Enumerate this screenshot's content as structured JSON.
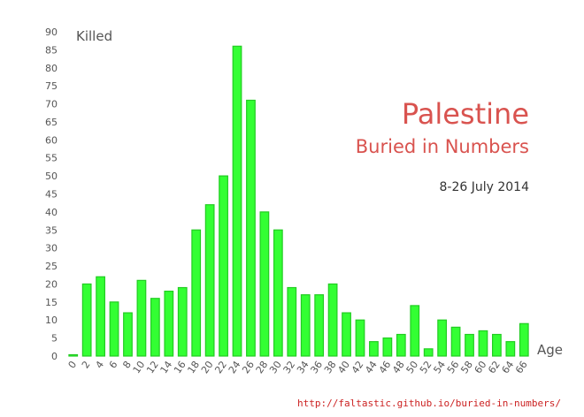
{
  "chart_data": {
    "type": "bar",
    "title": "Palestine",
    "subtitle": "Buried in Numbers",
    "date_range": "8-26 July 2014",
    "xlabel": "Age",
    "ylabel": "Killed",
    "ylim": [
      0,
      90
    ],
    "yticks": [
      0,
      5,
      10,
      15,
      20,
      25,
      30,
      35,
      40,
      45,
      50,
      55,
      60,
      65,
      70,
      75,
      80,
      85,
      90
    ],
    "categories": [
      "0",
      "2",
      "4",
      "6",
      "8",
      "10",
      "12",
      "14",
      "16",
      "18",
      "20",
      "22",
      "24",
      "26",
      "28",
      "30",
      "32",
      "34",
      "36",
      "38",
      "40",
      "42",
      "44",
      "46",
      "48",
      "50",
      "52",
      "54",
      "56",
      "58",
      "60",
      "62",
      "64",
      "66"
    ],
    "values": [
      0,
      20,
      22,
      15,
      12,
      21,
      16,
      18,
      19,
      35,
      42,
      50,
      86,
      71,
      40,
      35,
      19,
      17,
      17,
      20,
      12,
      10,
      4,
      5,
      6,
      14,
      2,
      10,
      8,
      6,
      7,
      6,
      4,
      9
    ],
    "colors": {
      "bar_fill": "#33ff33",
      "bar_stroke": "#22cc22",
      "title": "#d9534f",
      "source": "#cc2222"
    },
    "grid": false
  },
  "source_link": "http://faltastic.github.io/buried-in-numbers/"
}
